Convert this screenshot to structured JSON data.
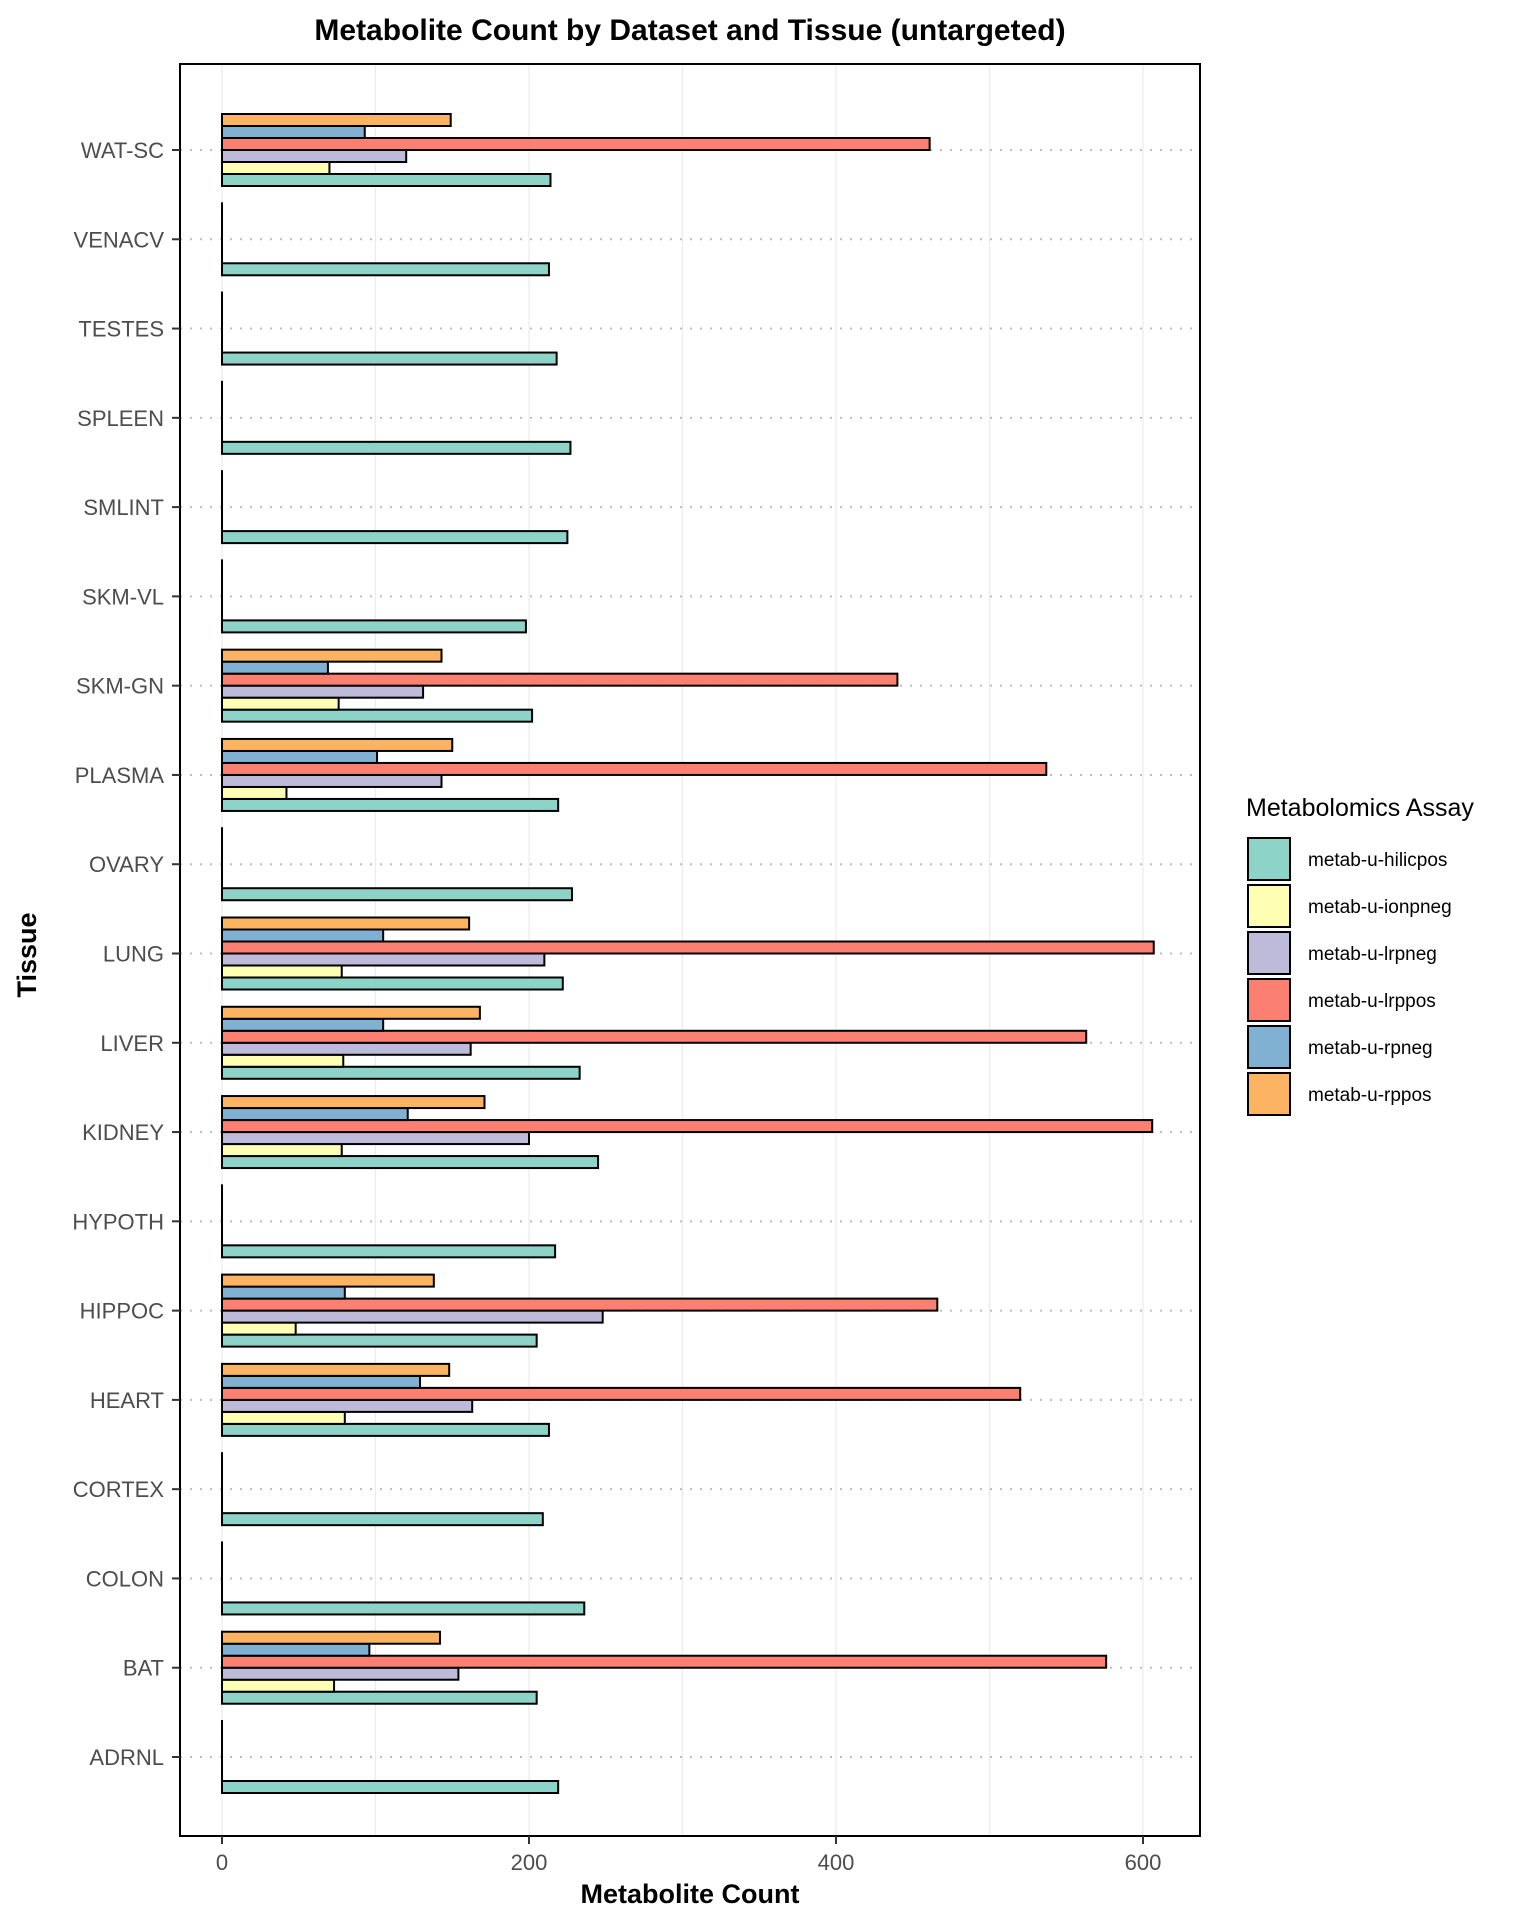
{
  "chart_data": {
    "type": "bar",
    "orientation": "horizontal",
    "title": "Metabolite Count by Dataset and Tissue (untargeted)",
    "xlabel": "Metabolite Count",
    "ylabel": "Tissue",
    "xlim": [
      -28,
      637
    ],
    "x_ticks": [
      0,
      200,
      400,
      600
    ],
    "grid": true,
    "legend": {
      "title": "Metabolomics Assay",
      "position": "right"
    },
    "categories": [
      "ADRNL",
      "BAT",
      "COLON",
      "CORTEX",
      "HEART",
      "HIPPOC",
      "HYPOTH",
      "KIDNEY",
      "LIVER",
      "LUNG",
      "OVARY",
      "PLASMA",
      "SKM-GN",
      "SKM-VL",
      "SMLINT",
      "SPLEEN",
      "TESTES",
      "VENACV",
      "WAT-SC"
    ],
    "series": [
      {
        "name": "metab-u-hilicpos",
        "color": "#8DD3C7",
        "values": [
          219,
          205,
          236,
          209,
          213,
          205,
          217,
          245,
          233,
          222,
          228,
          219,
          202,
          198,
          225,
          227,
          218,
          213,
          214
        ]
      },
      {
        "name": "metab-u-ionpneg",
        "color": "#FFFFB3",
        "values": [
          0,
          73,
          0,
          0,
          80,
          48,
          0,
          78,
          79,
          78,
          0,
          42,
          76,
          0,
          0,
          0,
          0,
          0,
          70
        ]
      },
      {
        "name": "metab-u-lrpneg",
        "color": "#BEBADA",
        "values": [
          0,
          154,
          0,
          0,
          163,
          248,
          0,
          200,
          162,
          210,
          0,
          143,
          131,
          0,
          0,
          0,
          0,
          0,
          120
        ]
      },
      {
        "name": "metab-u-lrppos",
        "color": "#FB8072",
        "values": [
          0,
          576,
          0,
          0,
          520,
          466,
          0,
          606,
          563,
          607,
          0,
          537,
          440,
          0,
          0,
          0,
          0,
          0,
          461
        ]
      },
      {
        "name": "metab-u-rpneg",
        "color": "#80B1D3",
        "values": [
          0,
          96,
          0,
          0,
          129,
          80,
          0,
          121,
          105,
          105,
          0,
          101,
          69,
          0,
          0,
          0,
          0,
          0,
          93
        ]
      },
      {
        "name": "metab-u-rppos",
        "color": "#FDB462",
        "values": [
          0,
          142,
          0,
          0,
          148,
          138,
          0,
          171,
          168,
          161,
          0,
          150,
          143,
          0,
          0,
          0,
          0,
          0,
          149
        ]
      }
    ]
  }
}
